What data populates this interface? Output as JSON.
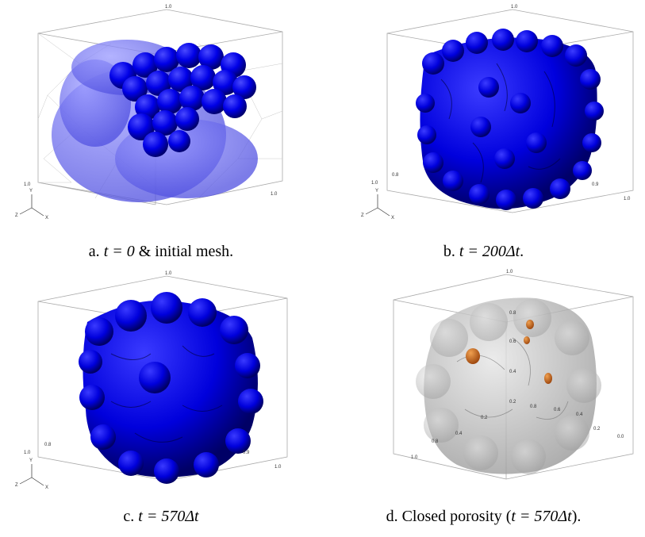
{
  "figure": {
    "panels": [
      {
        "id": "a",
        "caption_prefix": "a. ",
        "caption_math": "t = 0",
        "caption_suffix": " & initial mesh.",
        "tick_top": "1.0",
        "tick_left": "1.0",
        "tick_right": "1.0",
        "axis_labels": [
          "Y",
          "Z",
          "X"
        ],
        "body_color": "#0000ff",
        "translucent": true
      },
      {
        "id": "b",
        "caption_prefix": "b. ",
        "caption_math": "t = 200Δt",
        "caption_suffix": ".",
        "tick_top": "1.0",
        "tick_left": "1.0",
        "tick_left_b": "0.8",
        "tick_right": "1.0",
        "tick_right_b": "0.9",
        "axis_labels": [
          "Y",
          "Z",
          "X"
        ],
        "body_color": "#0000ff"
      },
      {
        "id": "c",
        "caption_prefix": "c. ",
        "caption_math": "t = 570Δt",
        "caption_suffix": "",
        "tick_top": "1.0",
        "tick_left": "1.0",
        "tick_left_b": "0.8",
        "tick_right": "1.0",
        "tick_right_b": "0.9",
        "axis_labels": [
          "Y",
          "Z",
          "X"
        ],
        "body_color": "#0000ff"
      },
      {
        "id": "d",
        "caption_prefix": "d. Closed porosity (",
        "caption_math": "t = 570Δt",
        "caption_suffix": ").",
        "tick_top": "1.0",
        "tick_mid": [
          "0.8",
          "0.6",
          "0.4",
          "0.2"
        ],
        "tick_bottom_left": "1.0",
        "tick_bottom_left_b": "0.8",
        "tick_bottom_right": "0.0",
        "tick_bottom_right_b": "0.2",
        "tick_floor": [
          "0.4",
          "0.2",
          "0.8",
          "0.6",
          "0.4"
        ],
        "body_color": "#c8c8c8",
        "pore_color": "#d2691e"
      }
    ]
  }
}
